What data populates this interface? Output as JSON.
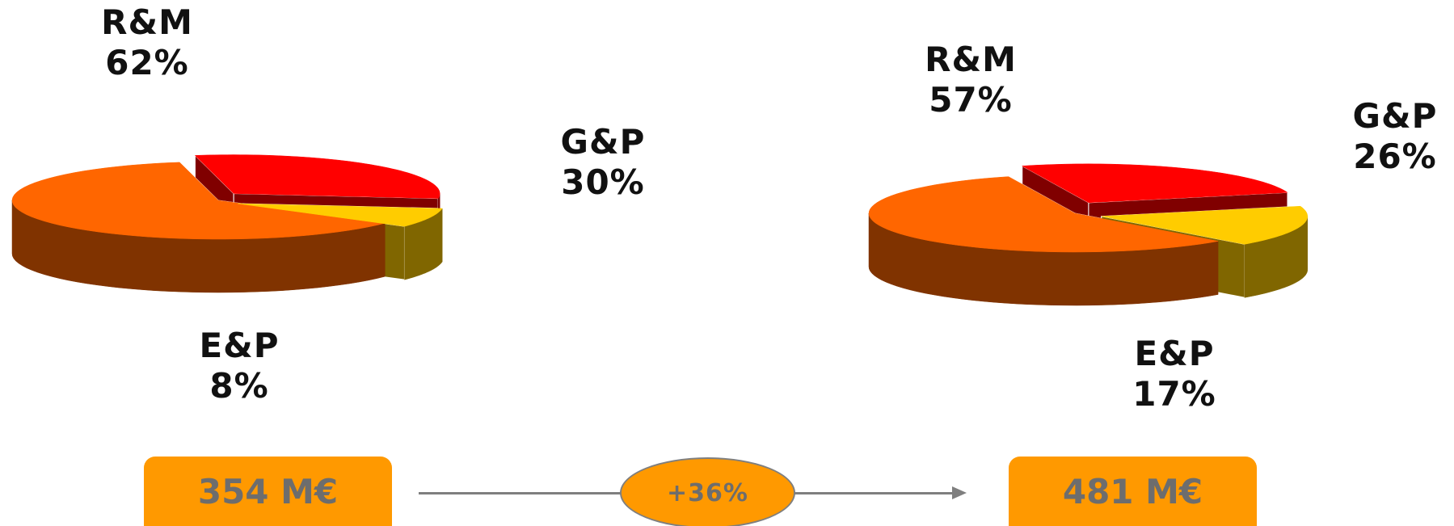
{
  "chart_data": [
    {
      "type": "pie",
      "title": "",
      "total_label": "354 M€",
      "slices": [
        {
          "name": "R&M",
          "pct_label": "62%",
          "value": 62,
          "top_color": "#FF6600",
          "side_color": "#803300"
        },
        {
          "name": "G&P",
          "pct_label": "30%",
          "value": 30,
          "top_color": "#FF0000",
          "side_color": "#800000"
        },
        {
          "name": "E&P",
          "pct_label": "8%",
          "value": 8,
          "top_color": "#FFCC00",
          "side_color": "#806600"
        }
      ]
    },
    {
      "type": "pie",
      "title": "",
      "total_label": "481 M€",
      "slices": [
        {
          "name": "R&M",
          "pct_label": "57%",
          "value": 57,
          "top_color": "#FF6600",
          "side_color": "#803300"
        },
        {
          "name": "G&P",
          "pct_label": "26%",
          "value": 26,
          "top_color": "#FF0000",
          "side_color": "#800000"
        },
        {
          "name": "E&P",
          "pct_label": "17%",
          "value": 17,
          "top_color": "#FFCC00",
          "side_color": "#806600"
        }
      ]
    }
  ],
  "growth": {
    "label": "+36%"
  },
  "colors": {
    "box_fill": "#FF9900",
    "badge_fill": "#FF9900",
    "line": "#7F7F7F",
    "text_gray": "#6D6D6D"
  }
}
